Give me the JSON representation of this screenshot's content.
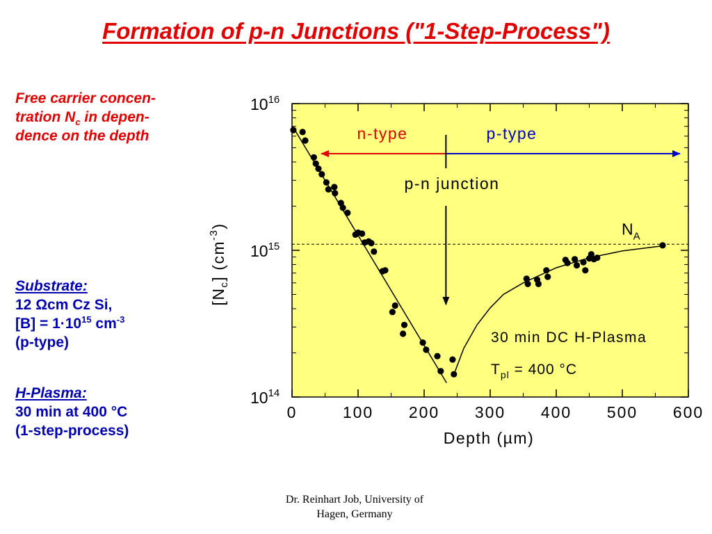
{
  "slide": {
    "title": "Formation of p-n Junctions (\"1-Step-Process\")",
    "note_line1": "Free carrier concen-",
    "note_line2_pre": "tration N",
    "note_line2_sub": "c",
    "note_line2_post": " in depen-",
    "note_line3": "dence on the depth",
    "substrate_head": "Substrate:",
    "substrate_line1": "12 Ωcm Cz Si,",
    "substrate_line2_pre": "[B] = 1·10",
    "substrate_line2_exp": "15",
    "substrate_line2_unit": " cm",
    "substrate_line2_unit_exp": "-3",
    "substrate_line3": "(p-type)",
    "plasma_head": "H-Plasma:",
    "plasma_line1": "30 min at 400 °C",
    "plasma_line2": "(1-step-process)",
    "footer_line1": "Dr. Reinhart Job, University of",
    "footer_line2": "Hagen, Germany"
  },
  "colors": {
    "title": "#e00000",
    "blue_text": "#0000b0",
    "plot_background": "#ffff80",
    "n_type": "#e00000",
    "p_type": "#0000cc"
  },
  "chart_data": {
    "type": "scatter",
    "xlabel": "Depth (µm)",
    "ylabel_pre": "[N",
    "ylabel_sub": "c",
    "ylabel_post": "] (cm",
    "ylabel_exp": "-3",
    "ylabel_close": ")",
    "xlim": [
      0,
      600
    ],
    "ylim": [
      100000000000000.0,
      1e+16
    ],
    "yscale": "log",
    "xticks": [
      0,
      100,
      200,
      300,
      400,
      500,
      600
    ],
    "xtick_labels": [
      "0",
      "100",
      "200",
      "300",
      "400",
      "500",
      "600"
    ],
    "ytick_exponents": [
      14,
      15,
      16
    ],
    "ytick_base": "10",
    "ytick_sup": [
      "14",
      "15",
      "16"
    ],
    "grid": false,
    "reference_line": {
      "y": 1100000000000000.0,
      "label_main": "N",
      "label_sub": "A"
    },
    "region_labels": {
      "n_type": "n-type",
      "p_type": "p-type",
      "junction": "p-n junction"
    },
    "junction_depth": 233,
    "annotation_line1": "30 min DC H-Plasma",
    "annotation_line2_pre": "T",
    "annotation_line2_sub": "pl",
    "annotation_line2_post": " = 400 °C",
    "points": [
      [
        2,
        6600000000000000.0
      ],
      [
        16,
        6400000000000000.0
      ],
      [
        20,
        5600000000000000.0
      ],
      [
        33,
        4300000000000000.0
      ],
      [
        36,
        3900000000000000.0
      ],
      [
        40,
        3600000000000000.0
      ],
      [
        45,
        3300000000000000.0
      ],
      [
        52,
        2900000000000000.0
      ],
      [
        55,
        2600000000000000.0
      ],
      [
        64,
        2700000000000000.0
      ],
      [
        65,
        2450000000000000.0
      ],
      [
        74,
        2100000000000000.0
      ],
      [
        77,
        1950000000000000.0
      ],
      [
        84,
        1800000000000000.0
      ],
      [
        96,
        1280000000000000.0
      ],
      [
        100,
        1320000000000000.0
      ],
      [
        106,
        1300000000000000.0
      ],
      [
        110,
        1130000000000000.0
      ],
      [
        116,
        1150000000000000.0
      ],
      [
        120,
        1120000000000000.0
      ],
      [
        124,
        980000000000000.0
      ],
      [
        137,
        720000000000000.0
      ],
      [
        141,
        730000000000000.0
      ],
      [
        152,
        380000000000000.0
      ],
      [
        156,
        420000000000000.0
      ],
      [
        168,
        270000000000000.0
      ],
      [
        170,
        310000000000000.0
      ],
      [
        198,
        235000000000000.0
      ],
      [
        203,
        210000000000000.0
      ],
      [
        220,
        190000000000000.0
      ],
      [
        225,
        150000000000000.0
      ],
      [
        243,
        180000000000000.0
      ],
      [
        245,
        143000000000000.0
      ],
      [
        355,
        640000000000000.0
      ],
      [
        357,
        590000000000000.0
      ],
      [
        371,
        630000000000000.0
      ],
      [
        373,
        590000000000000.0
      ],
      [
        385,
        730000000000000.0
      ],
      [
        387,
        660000000000000.0
      ],
      [
        414,
        860000000000000.0
      ],
      [
        417,
        820000000000000.0
      ],
      [
        428,
        870000000000000.0
      ],
      [
        431,
        790000000000000.0
      ],
      [
        441,
        830000000000000.0
      ],
      [
        444,
        730000000000000.0
      ],
      [
        450,
        880000000000000.0
      ],
      [
        453,
        940000000000000.0
      ],
      [
        457,
        870000000000000.0
      ],
      [
        462,
        890000000000000.0
      ],
      [
        561,
        1080000000000000.0
      ]
    ],
    "fit_left": [
      [
        1,
        7000000000000000.0
      ],
      [
        234,
        125000000000000.0
      ]
    ],
    "fit_right": [
      [
        247,
        150000000000000.0
      ],
      [
        260,
        215000000000000.0
      ],
      [
        280,
        310000000000000.0
      ],
      [
        300,
        405000000000000.0
      ],
      [
        320,
        500000000000000.0
      ],
      [
        350,
        600000000000000.0
      ],
      [
        400,
        760000000000000.0
      ],
      [
        450,
        890000000000000.0
      ],
      [
        500,
        990000000000000.0
      ],
      [
        560,
        1070000000000000.0
      ]
    ]
  }
}
